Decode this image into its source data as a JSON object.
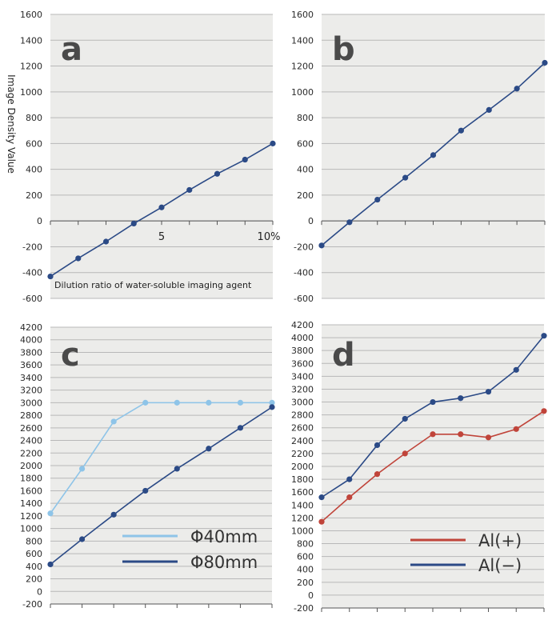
{
  "chart_data": [
    {
      "panel": "a",
      "type": "line",
      "ylabel": "Image Density Value",
      "xlabel": "Dilution ratio of water-soluble imaging agent",
      "ylim": [
        -600,
        1600
      ],
      "yticks": [
        -600,
        -400,
        -200,
        0,
        200,
        400,
        600,
        800,
        1000,
        1200,
        1400,
        1600
      ],
      "x_tick_labels": [
        {
          "x": 5,
          "label": "5"
        },
        {
          "x": 10,
          "label": "10%"
        }
      ],
      "xlim": [
        0,
        10
      ],
      "grid": true,
      "series": [
        {
          "color": "#2b4a86",
          "points": [
            [
              0,
              -430
            ],
            [
              1.25,
              -290
            ],
            [
              2.5,
              -160
            ],
            [
              3.75,
              -20
            ],
            [
              5,
              105
            ],
            [
              6.25,
              240
            ],
            [
              7.5,
              365
            ],
            [
              8.75,
              475
            ],
            [
              10,
              600
            ]
          ]
        }
      ]
    },
    {
      "panel": "b",
      "type": "line",
      "ylim": [
        -600,
        1600
      ],
      "yticks": [
        -600,
        -400,
        -200,
        0,
        200,
        400,
        600,
        800,
        1000,
        1200,
        1400,
        1600
      ],
      "xlim": [
        0,
        10
      ],
      "grid": true,
      "series": [
        {
          "color": "#2b4a86",
          "points": [
            [
              0,
              -190
            ],
            [
              1.25,
              -10
            ],
            [
              2.5,
              165
            ],
            [
              3.75,
              335
            ],
            [
              5,
              510
            ],
            [
              6.25,
              700
            ],
            [
              7.5,
              860
            ],
            [
              8.75,
              1025
            ],
            [
              10,
              1225
            ]
          ]
        }
      ]
    },
    {
      "panel": "c",
      "type": "line",
      "ylim": [
        -200,
        4200
      ],
      "yticks": [
        -200,
        0,
        200,
        400,
        600,
        800,
        1000,
        1200,
        1400,
        1600,
        1800,
        2000,
        2200,
        2400,
        2600,
        2800,
        3000,
        3200,
        3400,
        3600,
        3800,
        4000,
        4200
      ],
      "xlim": [
        0,
        7
      ],
      "grid": true,
      "legend_position": "bottom-right",
      "series": [
        {
          "name": "Φ40mm",
          "color": "#8ec4e8",
          "points": [
            [
              0,
              1240
            ],
            [
              1,
              1950
            ],
            [
              2,
              2700
            ],
            [
              3,
              3000
            ],
            [
              4,
              3000
            ],
            [
              5,
              3000
            ],
            [
              6,
              3000
            ],
            [
              7,
              3000
            ]
          ]
        },
        {
          "name": "Φ80mm",
          "color": "#2b4a86",
          "points": [
            [
              0,
              430
            ],
            [
              1,
              830
            ],
            [
              2,
              1220
            ],
            [
              3,
              1600
            ],
            [
              4,
              1950
            ],
            [
              5,
              2270
            ],
            [
              6,
              2600
            ],
            [
              7,
              2930
            ]
          ]
        }
      ]
    },
    {
      "panel": "d",
      "type": "line",
      "ylim": [
        -200,
        4200
      ],
      "yticks": [
        -200,
        0,
        200,
        400,
        600,
        800,
        1000,
        1200,
        1400,
        1600,
        1800,
        2000,
        2200,
        2400,
        2600,
        2800,
        3000,
        3200,
        3400,
        3600,
        3800,
        4000,
        4200
      ],
      "xlim": [
        0,
        7
      ],
      "grid": true,
      "legend_position": "bottom-right",
      "series": [
        {
          "name": "Al(+)",
          "color": "#c0443a",
          "points": [
            [
              0,
              1140
            ],
            [
              1,
              1520
            ],
            [
              2,
              1880
            ],
            [
              3,
              2200
            ],
            [
              4,
              2500
            ],
            [
              5,
              2500
            ],
            [
              6,
              2450
            ],
            [
              7,
              2580
            ],
            [
              8,
              2860
            ]
          ]
        },
        {
          "name": "Al(−)",
          "color": "#2b4a86",
          "points": [
            [
              0,
              1520
            ],
            [
              1,
              1800
            ],
            [
              2,
              2330
            ],
            [
              3,
              2740
            ],
            [
              4,
              3000
            ],
            [
              5,
              3060
            ],
            [
              6,
              3160
            ],
            [
              7,
              3500
            ],
            [
              8,
              4030
            ]
          ]
        }
      ]
    }
  ]
}
